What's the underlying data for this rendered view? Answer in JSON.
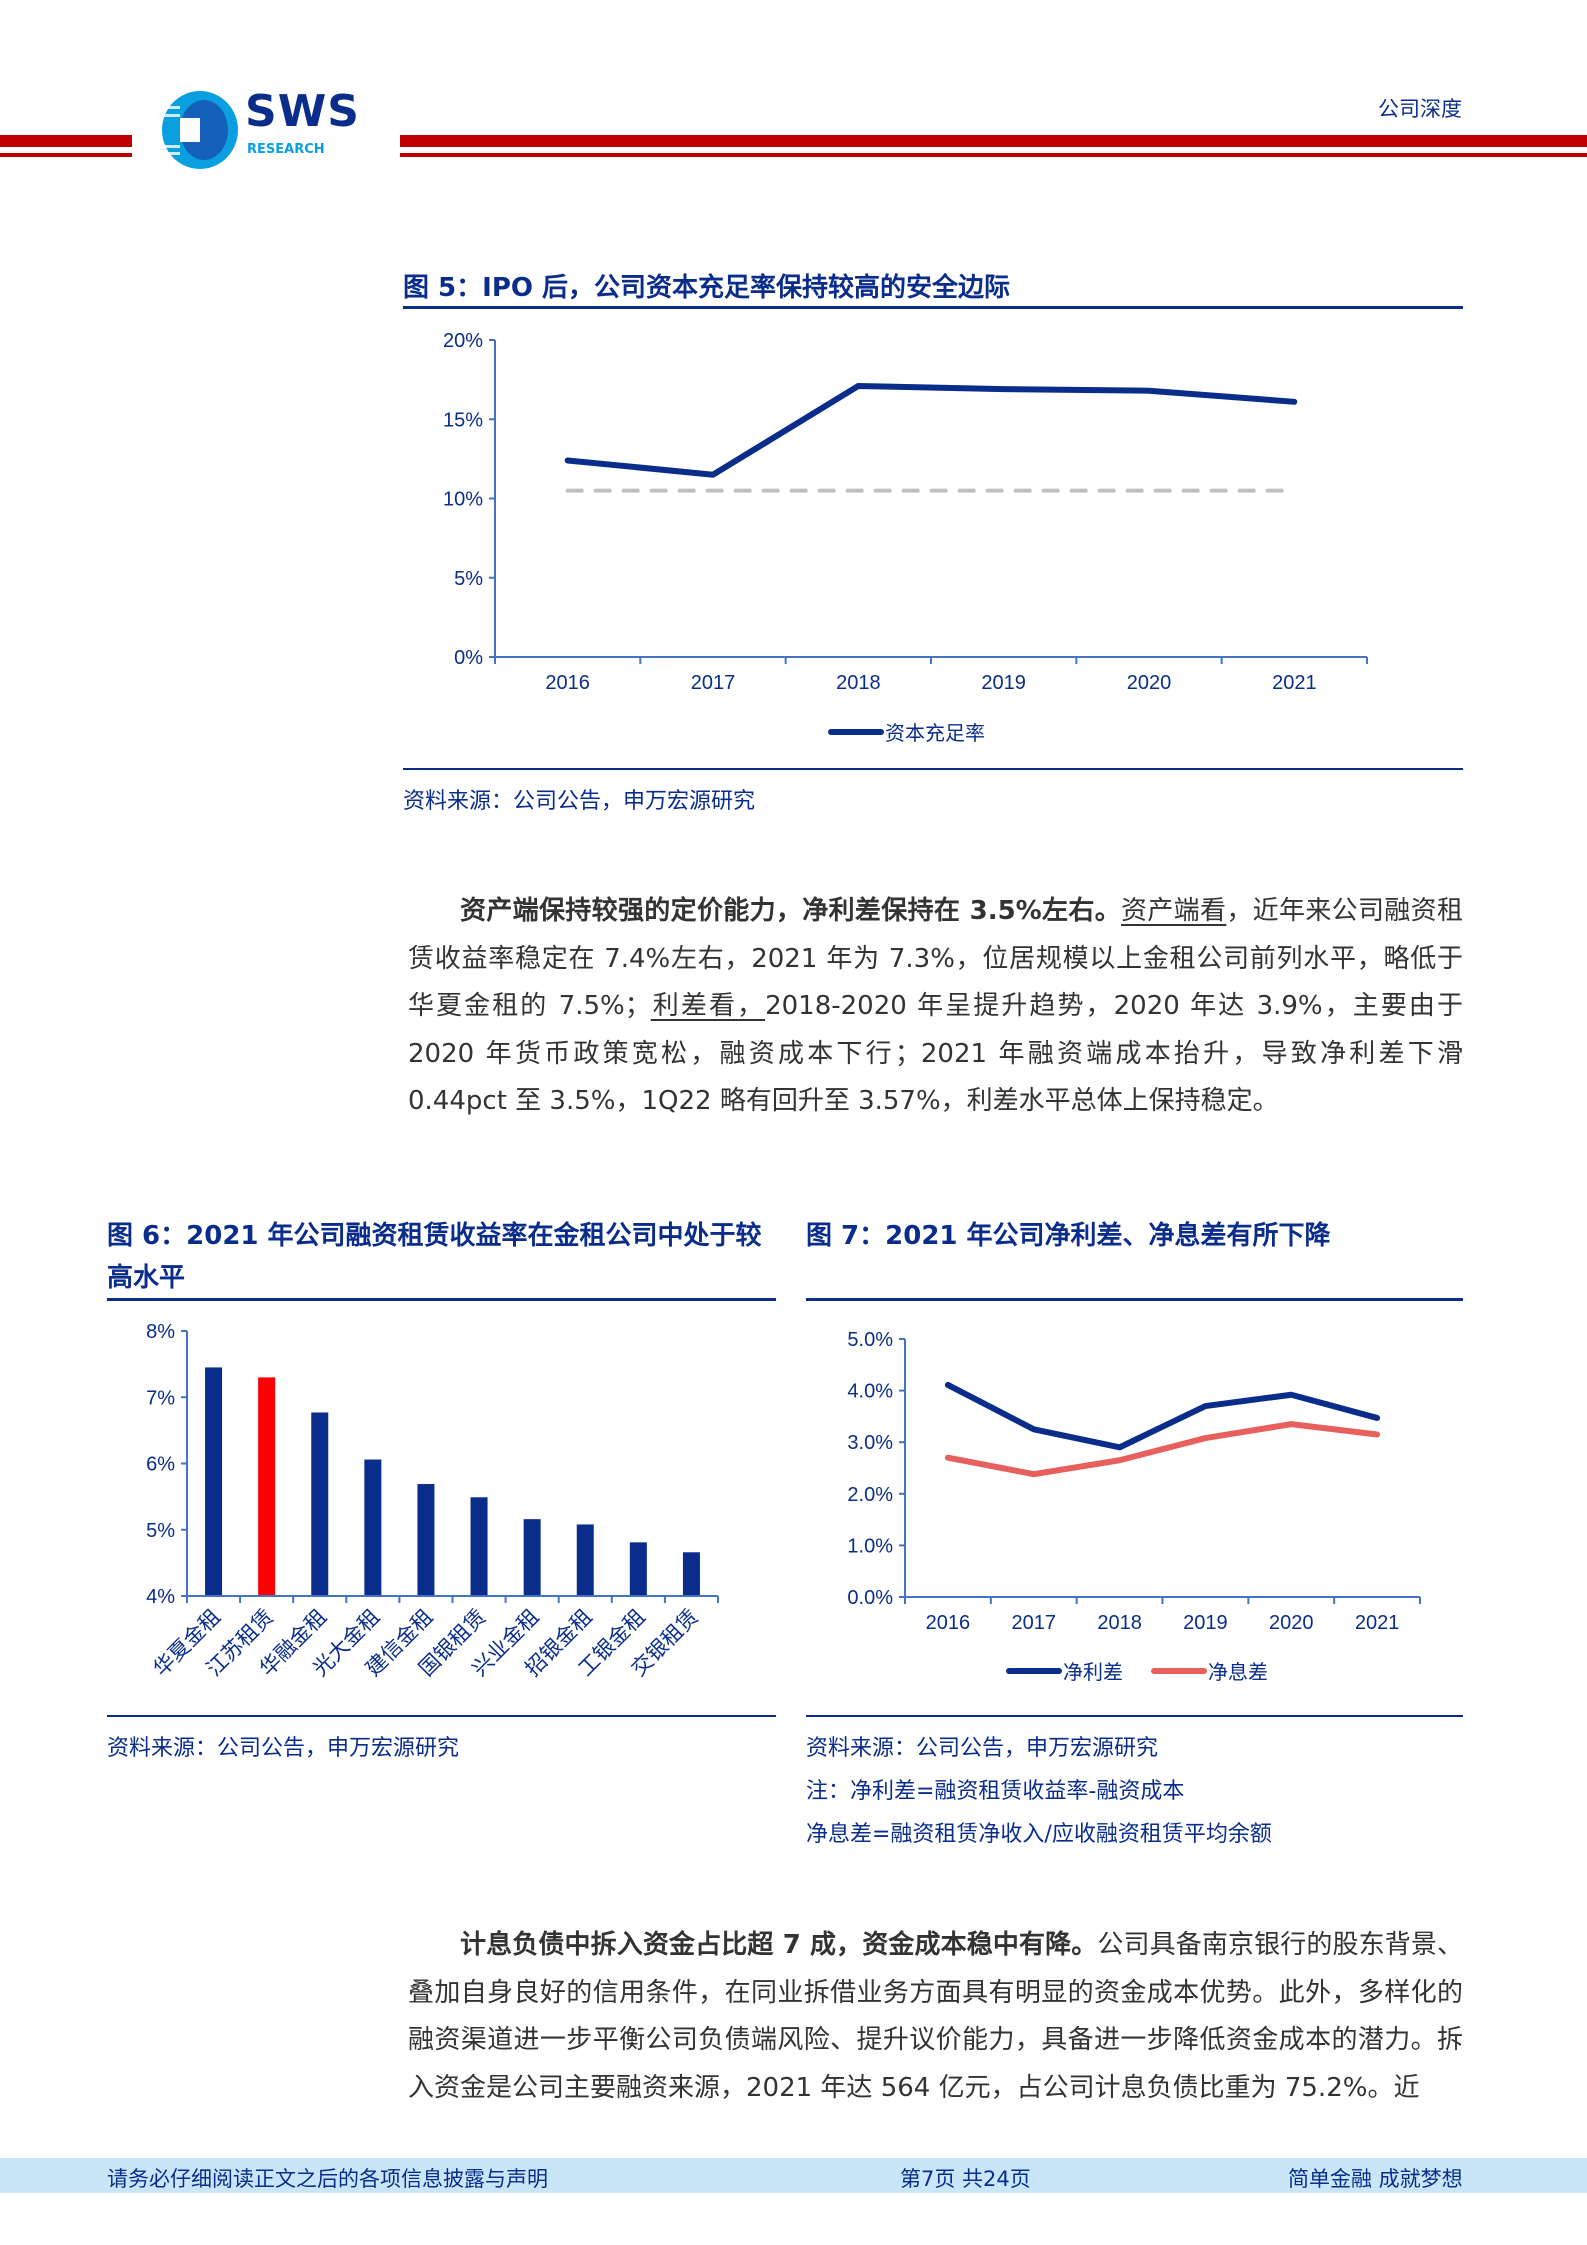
{
  "header": {
    "logo_text": "SWS",
    "logo_subtext": "RESEARCH",
    "report_type": "公司深度",
    "colors": {
      "red": "#c00000",
      "navy": "#0a2d8c"
    }
  },
  "figure5": {
    "title": "图 5：IPO 后，公司资本充足率保持较高的安全边际",
    "source": "资料来源：公司公告，申万宏源研究"
  },
  "paragraph1": {
    "bold": "资产端保持较强的定价能力，净利差保持在 3.5%左右。",
    "u1": "资产端看",
    "t1": "，近年来公司融资租赁收益率稳定在 7.4%左右，2021 年为 7.3%，位居规模以上金租公司前列水平，略低于华夏金租的 7.5%；",
    "u2": "利差看，",
    "t2": "2018-2020 年呈提升趋势，2020 年达 3.9%，主要由于 2020 年货币政策宽松，融资成本下行；2021 年融资端成本抬升，导致净利差下滑 0.44pct 至 3.5%，1Q22 略有回升至 3.57%，利差水平总体上保持稳定。"
  },
  "figure6": {
    "title": "图 6：2021 年公司融资租赁收益率在金租公司中处于较高水平",
    "source": "资料来源：公司公告，申万宏源研究"
  },
  "figure7": {
    "title": "图 7：2021 年公司净利差、净息差有所下降",
    "source": "资料来源：公司公告，申万宏源研究",
    "note1": "注：净利差=融资租赁收益率-融资成本",
    "note2": "净息差=融资租赁净收入/应收融资租赁平均余额"
  },
  "paragraph2": {
    "bold": "计息负债中拆入资金占比超 7 成，资金成本稳中有降。",
    "text": "公司具备南京银行的股东背景、叠加自身良好的信用条件，在同业拆借业务方面具有明显的资金成本优势。此外，多样化的融资渠道进一步平衡公司负债端风险、提升议价能力，具备进一步降低资金成本的潜力。拆入资金是公司主要融资来源，2021 年达 564 亿元，占公司计息负债比重为 75.2%。近"
  },
  "footer": {
    "disclaimer": "请务必仔细阅读正文之后的各项信息披露与声明",
    "page": "第7页  共24页",
    "slogan": "简单金融 成就梦想"
  },
  "chart_data": [
    {
      "type": "line",
      "title": "图 5：IPO 后，公司资本充足率保持较高的安全边际",
      "categories": [
        "2016",
        "2017",
        "2018",
        "2019",
        "2020",
        "2021"
      ],
      "series": [
        {
          "name": "资本充足率",
          "values": [
            12.4,
            11.5,
            17.1,
            16.9,
            16.8,
            16.1
          ],
          "color": "#0a2d8c"
        },
        {
          "name": "",
          "values": [
            10.5,
            10.5,
            10.5,
            10.5,
            10.5,
            10.5
          ],
          "color": "#c0c0c0",
          "dashed": true
        }
      ],
      "yticks": [
        "0%",
        "5%",
        "10%",
        "15%",
        "20%"
      ],
      "ylim": [
        0,
        20
      ],
      "legend": "bottom"
    },
    {
      "type": "bar",
      "title": "图 6：2021 年公司融资租赁收益率在金租公司中处于较高水平",
      "categories": [
        "华夏金租",
        "江苏租赁",
        "华融金租",
        "光大金租",
        "建信金租",
        "国银租赁",
        "兴业金租",
        "招银金租",
        "工银金租",
        "交银租赁"
      ],
      "values": [
        7.45,
        7.3,
        6.77,
        6.06,
        5.69,
        5.49,
        5.16,
        5.08,
        4.81,
        4.66
      ],
      "highlight": "江苏租赁",
      "colors": {
        "default": "#0a2d8c",
        "highlight": "#ff0000"
      },
      "yticks": [
        "4%",
        "5%",
        "6%",
        "7%",
        "8%"
      ],
      "ylim": [
        4,
        8
      ]
    },
    {
      "type": "line",
      "title": "图 7：2021 年公司净利差、净息差有所下降",
      "categories": [
        "2016",
        "2017",
        "2018",
        "2019",
        "2020",
        "2021"
      ],
      "series": [
        {
          "name": "净利差",
          "values": [
            4.11,
            3.25,
            2.9,
            3.7,
            3.92,
            3.47
          ],
          "color": "#0a2d8c"
        },
        {
          "name": "净息差",
          "values": [
            2.7,
            2.38,
            2.65,
            3.08,
            3.35,
            3.15
          ],
          "color": "#e8605e"
        }
      ],
      "yticks": [
        "0.0%",
        "1.0%",
        "2.0%",
        "3.0%",
        "4.0%",
        "5.0%"
      ],
      "ylim": [
        0,
        5
      ],
      "legend": "bottom"
    }
  ]
}
